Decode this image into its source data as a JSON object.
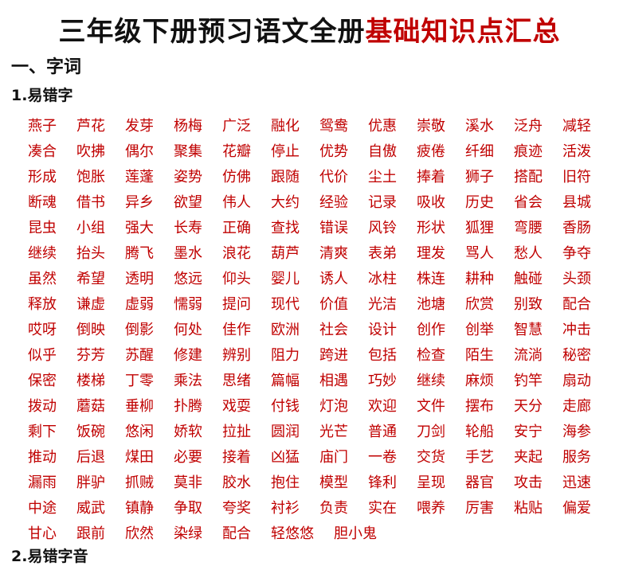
{
  "header": {
    "title_black": "三年级下册预习语文全册",
    "title_red": "基础知识点汇总"
  },
  "section": {
    "heading": "一、字词",
    "subheading": "1.易错字",
    "words": [
      [
        "燕子",
        "芦花",
        "发芽",
        "杨梅",
        "广泛",
        "融化",
        "鸳鸯",
        "优惠",
        "崇敬",
        "溪水",
        "泛舟",
        "减轻"
      ],
      [
        "凑合",
        "吹拂",
        "偶尔",
        "聚集",
        "花瓣",
        "停止",
        "优势",
        "自傲",
        "疲倦",
        "纤细",
        "痕迹",
        "活泼"
      ],
      [
        "形成",
        "饱胀",
        "莲蓬",
        "姿势",
        "仿佛",
        "跟随",
        "代价",
        "尘土",
        "捧着",
        "狮子",
        "搭配",
        "旧符"
      ],
      [
        "断魂",
        "借书",
        "异乡",
        "欲望",
        "伟人",
        "大约",
        "经验",
        "记录",
        "吸收",
        "历史",
        "省会",
        "县城"
      ],
      [
        "昆虫",
        "小组",
        "强大",
        "长寿",
        "正确",
        "查找",
        "错误",
        "风铃",
        "形状",
        "狐狸",
        "弯腰",
        "香肠"
      ],
      [
        "继续",
        "抬头",
        "腾飞",
        "墨水",
        "浪花",
        "葫芦",
        "清爽",
        "表弟",
        "理发",
        "骂人",
        "愁人",
        "争夺"
      ],
      [
        "虽然",
        "希望",
        "透明",
        "悠远",
        "仰头",
        "婴儿",
        "诱人",
        "冰柱",
        "株连",
        "耕种",
        "触碰",
        "头颈"
      ],
      [
        "释放",
        "谦虚",
        "虚弱",
        "懦弱",
        "提问",
        "现代",
        "价值",
        "光洁",
        "池塘",
        "欣赏",
        "别致",
        "配合"
      ],
      [
        "哎呀",
        "倒映",
        "倒影",
        "何处",
        "佳作",
        "欧洲",
        "社会",
        "设计",
        "创作",
        "创举",
        "智慧",
        "冲击"
      ],
      [
        "似乎",
        "芬芳",
        "苏醒",
        "修建",
        "辨别",
        "阻力",
        "跨进",
        "包括",
        "检查",
        "陌生",
        "流淌",
        "秘密"
      ],
      [
        "保密",
        "楼梯",
        "丁零",
        "乘法",
        "思绪",
        "篇幅",
        "相遇",
        "巧妙",
        "继续",
        "麻烦",
        "钓竿",
        "扇动"
      ],
      [
        "拨动",
        "蘑菇",
        "垂柳",
        "扑腾",
        "戏耍",
        "付钱",
        "灯泡",
        "欢迎",
        "文件",
        "摆布",
        "天分",
        "走廊"
      ],
      [
        "剩下",
        "饭碗",
        "悠闲",
        "娇软",
        "拉扯",
        "圆润",
        "光芒",
        "普通",
        "刀剑",
        "轮船",
        "安宁",
        "海参"
      ],
      [
        "推动",
        "后退",
        "煤田",
        "必要",
        "接着",
        "凶猛",
        "庙门",
        "一卷",
        "交货",
        "手艺",
        "夹起",
        "服务"
      ],
      [
        "漏雨",
        "胖驴",
        "抓贼",
        "莫非",
        "胶水",
        "抱住",
        "模型",
        "锋利",
        "呈现",
        "器官",
        "攻击",
        "迅速"
      ],
      [
        "中途",
        "威武",
        "镇静",
        "争取",
        "夸奖",
        "衬衫",
        "负责",
        "实在",
        "喂养",
        "厉害",
        "粘贴",
        "偏爱"
      ],
      [
        "甘心",
        "跟前",
        "欣然",
        "染绿",
        "配合",
        "轻悠悠",
        "胆小鬼"
      ]
    ]
  },
  "next_subheading": "2.易错字音"
}
